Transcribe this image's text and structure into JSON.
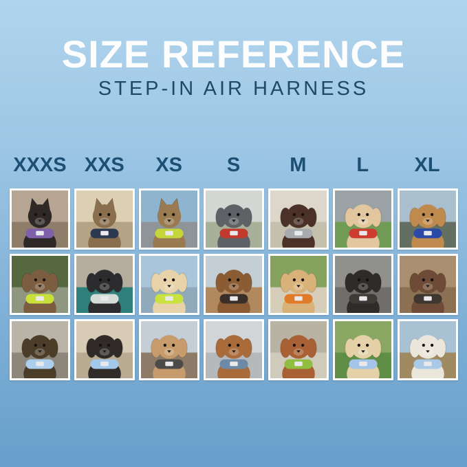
{
  "page": {
    "title": "SIZE REFERENCE",
    "subtitle": "STEP-IN AIR HARNESS"
  },
  "colors": {
    "background_top": "#b0d4ed",
    "background_bottom": "#669fca",
    "title_text": "#fdfdfd",
    "subtitle_text": "#1d4a68",
    "header_text": "#1d4f73",
    "photo_frame": "#ffffff",
    "harness_tag": "#e9e9ec"
  },
  "sizes": [
    "XXXS",
    "XXS",
    "XS",
    "S",
    "M",
    "L",
    "XL"
  ],
  "grid": {
    "rows": 3,
    "columns": 7,
    "cells": [
      {
        "row": 1,
        "size": "XXXS",
        "pet": "cat",
        "description": "black kitten wearing a purple harness indoors",
        "pet_color": "#2e2926",
        "harness_color": "#7e60ab",
        "bg_top": "#b6a592",
        "bg_bottom": "#8d7d69"
      },
      {
        "row": 1,
        "size": "XXS",
        "pet": "cat",
        "description": "brown tabby cat in a navy harness looking out a window",
        "pet_color": "#8a6f4f",
        "harness_color": "#2c3850",
        "bg_top": "#dccfb4",
        "bg_bottom": "#b5a385"
      },
      {
        "row": 1,
        "size": "XS",
        "pet": "cat",
        "description": "tabby cat in a lime green harness inside a car",
        "pet_color": "#9a7a50",
        "harness_color": "#c5d63b",
        "bg_top": "#8fb4cf",
        "bg_bottom": "#8e9497"
      },
      {
        "row": 1,
        "size": "S",
        "pet": "dog",
        "description": "grey French bulldog in a red harness on a sunny path",
        "pet_color": "#5e6165",
        "harness_color": "#c23a2d",
        "bg_top": "#d3d6d3",
        "bg_bottom": "#a9b099"
      },
      {
        "row": 1,
        "size": "M",
        "pet": "dog",
        "description": "chocolate brown spaniel in a grey harness on concrete",
        "pet_color": "#4b3128",
        "harness_color": "#a7abae",
        "bg_top": "#dcd7ca",
        "bg_bottom": "#c5bfae"
      },
      {
        "row": 1,
        "size": "L",
        "pet": "dog",
        "description": "cream Shiba Inu holding a red ball, wearing a red harness on grass",
        "pet_color": "#e2c79e",
        "harness_color": "#cd3c2e",
        "bg_top": "#9aa2a5",
        "bg_bottom": "#6f9b55"
      },
      {
        "row": 1,
        "size": "XL",
        "pet": "dog",
        "description": "golden retriever in a navy and blue harness on a path with yellow flowers",
        "pet_color": "#bf8a4d",
        "harness_color": "#2b4aa8",
        "bg_top": "#aabfcd",
        "bg_bottom": "#636f62"
      },
      {
        "row": 2,
        "size": "XXXS",
        "pet": "dog",
        "description": "scruffy brown puppy in a neon green harness among greenery",
        "pet_color": "#7c5d3f",
        "harness_color": "#c9e03b",
        "bg_top": "#55683f",
        "bg_bottom": "#8f9781"
      },
      {
        "row": 2,
        "size": "XXS",
        "pet": "dog",
        "description": "black puppy in a pale grey harness on a teal blanket in a car",
        "pet_color": "#2c2c2e",
        "harness_color": "#d3dcd6",
        "bg_top": "#b4ad9e",
        "bg_bottom": "#2f807c"
      },
      {
        "row": 2,
        "size": "XS",
        "pet": "dog",
        "description": "cream long-haired dachshund in a neon green harness on a boat",
        "pet_color": "#e7d2aa",
        "harness_color": "#c9e23e",
        "bg_top": "#a9c5da",
        "bg_bottom": "#90a9bb"
      },
      {
        "row": 2,
        "size": "S",
        "pet": "dog",
        "description": "long-haired dachshund in a dark harness on a wooden dock",
        "pet_color": "#8b5b34",
        "harness_color": "#3a2f28",
        "bg_top": "#c4ced5",
        "bg_bottom": "#b1895f"
      },
      {
        "row": 2,
        "size": "M",
        "pet": "dog",
        "description": "golden retriever puppy in an orange harness on a lawn",
        "pet_color": "#d9b279",
        "harness_color": "#e07b2a",
        "bg_top": "#85a35e",
        "bg_bottom": "#d7ceba"
      },
      {
        "row": 2,
        "size": "L",
        "pet": "dog",
        "description": "black and tan dog in a dark harness inside a corrugated metal tunnel",
        "pet_color": "#2f2b29",
        "harness_color": "#403a36",
        "bg_top": "#90908e",
        "bg_bottom": "#6f6e6a"
      },
      {
        "row": 2,
        "size": "XL",
        "pet": "dog",
        "description": "brown and white dog in a black harness on wooden decking",
        "pet_color": "#6d4b36",
        "harness_color": "#3d3631",
        "bg_top": "#a98e6f",
        "bg_bottom": "#8b7053"
      },
      {
        "row": 3,
        "size": "XXXS",
        "pet": "dog",
        "description": "Yorkshire terrier puppy in a light blue harness on a sunny pavement",
        "pet_color": "#4c3d29",
        "harness_color": "#abcfec",
        "bg_top": "#bab3a7",
        "bg_bottom": "#8d877b"
      },
      {
        "row": 3,
        "size": "XXS",
        "pet": "dog",
        "description": "black and tan dachshund in a light blue harness on a car seat",
        "pet_color": "#302b28",
        "harness_color": "#a2c8ea",
        "bg_top": "#d8cbb6",
        "bg_bottom": "#b9ab91"
      },
      {
        "row": 3,
        "size": "XS",
        "pet": "dog",
        "description": "apricot poodle puppy in a dark grey harness on a deck",
        "pet_color": "#c79b6c",
        "harness_color": "#4c4b49",
        "bg_top": "#c4ced7",
        "bg_bottom": "#8d7b67"
      },
      {
        "row": 3,
        "size": "S",
        "pet": "dog",
        "description": "red dachshund in a slate blue harness on concrete",
        "pet_color": "#aa6b3b",
        "harness_color": "#6d8ba6",
        "bg_top": "#d1d5d7",
        "bg_bottom": "#b5b9bb"
      },
      {
        "row": 3,
        "size": "M",
        "pet": "dog",
        "description": "red poodle in a green harness on a sidewalk",
        "pet_color": "#a96034",
        "harness_color": "#90bf40",
        "bg_top": "#b9b3a3",
        "bg_bottom": "#d0cabb"
      },
      {
        "row": 3,
        "size": "L",
        "pet": "dog",
        "description": "cream golden retriever puppy in a light blue harness on grass",
        "pet_color": "#e5d1a7",
        "harness_color": "#a4c5e9",
        "bg_top": "#8aa863",
        "bg_bottom": "#5f8f46"
      },
      {
        "row": 3,
        "size": "XL",
        "pet": "dog",
        "description": "white dog in a light blue harness on a city street at dusk",
        "pet_color": "#ebe6dc",
        "harness_color": "#aac9e9",
        "bg_top": "#a8c2d4",
        "bg_bottom": "#a08a62"
      }
    ]
  }
}
